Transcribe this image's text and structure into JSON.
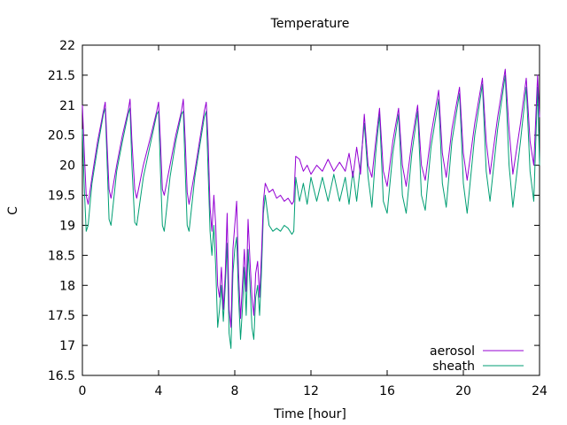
{
  "chart_data": {
    "type": "line",
    "title": "Temperature",
    "xlabel": "Time [hour]",
    "ylabel": "C",
    "xlim": [
      0,
      24
    ],
    "ylim": [
      16.5,
      22
    ],
    "x_ticks": [
      "0",
      "4",
      "8",
      "12",
      "16",
      "20",
      "24"
    ],
    "y_ticks": [
      "16.5",
      "17",
      "17.5",
      "18",
      "18.5",
      "19",
      "19.5",
      "20",
      "20.5",
      "21",
      "21.5",
      "22"
    ],
    "legend_position": "bottom-right",
    "grid": false,
    "series": [
      {
        "name": "aerosol",
        "color": "#9400d3",
        "points": [
          [
            0.0,
            21.0
          ],
          [
            0.1,
            20.2
          ],
          [
            0.2,
            19.5
          ],
          [
            0.3,
            19.35
          ],
          [
            0.5,
            19.8
          ],
          [
            0.8,
            20.4
          ],
          [
            1.1,
            20.9
          ],
          [
            1.2,
            21.05
          ],
          [
            1.3,
            20.3
          ],
          [
            1.4,
            19.6
          ],
          [
            1.5,
            19.45
          ],
          [
            1.8,
            20.0
          ],
          [
            2.1,
            20.5
          ],
          [
            2.4,
            20.9
          ],
          [
            2.5,
            21.1
          ],
          [
            2.6,
            20.4
          ],
          [
            2.75,
            19.6
          ],
          [
            2.85,
            19.45
          ],
          [
            3.2,
            20.0
          ],
          [
            3.6,
            20.5
          ],
          [
            3.9,
            20.9
          ],
          [
            4.0,
            21.05
          ],
          [
            4.1,
            20.4
          ],
          [
            4.2,
            19.6
          ],
          [
            4.3,
            19.5
          ],
          [
            4.6,
            20.0
          ],
          [
            4.9,
            20.5
          ],
          [
            5.2,
            20.9
          ],
          [
            5.3,
            21.1
          ],
          [
            5.4,
            20.4
          ],
          [
            5.5,
            19.55
          ],
          [
            5.6,
            19.35
          ],
          [
            5.9,
            19.9
          ],
          [
            6.2,
            20.5
          ],
          [
            6.4,
            20.9
          ],
          [
            6.5,
            21.05
          ],
          [
            6.6,
            20.4
          ],
          [
            6.7,
            19.3
          ],
          [
            6.8,
            18.9
          ],
          [
            6.9,
            19.5
          ],
          [
            7.0,
            19.0
          ],
          [
            7.1,
            18.0
          ],
          [
            7.2,
            17.8
          ],
          [
            7.3,
            18.3
          ],
          [
            7.4,
            17.6
          ],
          [
            7.5,
            18.2
          ],
          [
            7.6,
            19.2
          ],
          [
            7.7,
            17.6
          ],
          [
            7.8,
            17.3
          ],
          [
            7.9,
            18.6
          ],
          [
            8.0,
            19.0
          ],
          [
            8.1,
            19.4
          ],
          [
            8.2,
            18.2
          ],
          [
            8.3,
            17.45
          ],
          [
            8.4,
            18.0
          ],
          [
            8.5,
            18.6
          ],
          [
            8.6,
            17.9
          ],
          [
            8.7,
            19.1
          ],
          [
            8.8,
            18.4
          ],
          [
            8.9,
            17.8
          ],
          [
            9.0,
            17.5
          ],
          [
            9.1,
            18.2
          ],
          [
            9.2,
            18.4
          ],
          [
            9.3,
            17.8
          ],
          [
            9.4,
            18.5
          ],
          [
            9.5,
            19.4
          ],
          [
            9.6,
            19.7
          ],
          [
            9.8,
            19.55
          ],
          [
            10.0,
            19.6
          ],
          [
            10.2,
            19.45
          ],
          [
            10.4,
            19.5
          ],
          [
            10.6,
            19.4
          ],
          [
            10.8,
            19.45
          ],
          [
            11.0,
            19.35
          ],
          [
            11.1,
            19.4
          ],
          [
            11.2,
            20.15
          ],
          [
            11.4,
            20.1
          ],
          [
            11.6,
            19.9
          ],
          [
            11.8,
            20.0
          ],
          [
            12.0,
            19.85
          ],
          [
            12.3,
            20.0
          ],
          [
            12.6,
            19.9
          ],
          [
            12.9,
            20.1
          ],
          [
            13.2,
            19.9
          ],
          [
            13.5,
            20.05
          ],
          [
            13.8,
            19.9
          ],
          [
            14.0,
            20.2
          ],
          [
            14.2,
            19.8
          ],
          [
            14.4,
            20.3
          ],
          [
            14.6,
            19.85
          ],
          [
            14.8,
            20.85
          ],
          [
            15.0,
            20.0
          ],
          [
            15.2,
            19.8
          ],
          [
            15.4,
            20.4
          ],
          [
            15.6,
            20.95
          ],
          [
            15.8,
            19.9
          ],
          [
            16.0,
            19.65
          ],
          [
            16.3,
            20.4
          ],
          [
            16.6,
            20.95
          ],
          [
            16.8,
            20.0
          ],
          [
            17.0,
            19.65
          ],
          [
            17.3,
            20.4
          ],
          [
            17.6,
            21.0
          ],
          [
            17.8,
            20.0
          ],
          [
            18.0,
            19.75
          ],
          [
            18.3,
            20.5
          ],
          [
            18.7,
            21.25
          ],
          [
            18.9,
            20.2
          ],
          [
            19.1,
            19.8
          ],
          [
            19.4,
            20.6
          ],
          [
            19.8,
            21.3
          ],
          [
            20.0,
            20.2
          ],
          [
            20.2,
            19.75
          ],
          [
            20.6,
            20.7
          ],
          [
            21.0,
            21.45
          ],
          [
            21.2,
            20.4
          ],
          [
            21.4,
            19.85
          ],
          [
            21.8,
            20.8
          ],
          [
            22.2,
            21.6
          ],
          [
            22.4,
            20.6
          ],
          [
            22.6,
            19.85
          ],
          [
            23.0,
            20.7
          ],
          [
            23.3,
            21.45
          ],
          [
            23.5,
            20.4
          ],
          [
            23.7,
            20.0
          ],
          [
            23.9,
            21.5
          ],
          [
            24.0,
            20.8
          ]
        ]
      },
      {
        "name": "sheath",
        "color": "#009e73",
        "points": [
          [
            0.0,
            20.6
          ],
          [
            0.1,
            19.6
          ],
          [
            0.2,
            18.9
          ],
          [
            0.3,
            19.0
          ],
          [
            0.5,
            19.7
          ],
          [
            0.8,
            20.3
          ],
          [
            1.1,
            20.85
          ],
          [
            1.2,
            20.95
          ],
          [
            1.3,
            20.0
          ],
          [
            1.4,
            19.1
          ],
          [
            1.5,
            19.0
          ],
          [
            1.8,
            19.9
          ],
          [
            2.1,
            20.4
          ],
          [
            2.4,
            20.85
          ],
          [
            2.5,
            20.95
          ],
          [
            2.6,
            20.0
          ],
          [
            2.75,
            19.05
          ],
          [
            2.85,
            19.0
          ],
          [
            3.2,
            19.8
          ],
          [
            3.6,
            20.4
          ],
          [
            3.9,
            20.85
          ],
          [
            4.0,
            20.9
          ],
          [
            4.1,
            19.9
          ],
          [
            4.2,
            19.0
          ],
          [
            4.3,
            18.9
          ],
          [
            4.6,
            19.8
          ],
          [
            4.9,
            20.4
          ],
          [
            5.2,
            20.85
          ],
          [
            5.3,
            20.9
          ],
          [
            5.4,
            19.9
          ],
          [
            5.5,
            19.0
          ],
          [
            5.6,
            18.9
          ],
          [
            5.9,
            19.8
          ],
          [
            6.2,
            20.4
          ],
          [
            6.4,
            20.8
          ],
          [
            6.5,
            20.9
          ],
          [
            6.6,
            19.9
          ],
          [
            6.7,
            18.9
          ],
          [
            6.8,
            18.5
          ],
          [
            6.9,
            19.0
          ],
          [
            7.0,
            18.3
          ],
          [
            7.1,
            17.3
          ],
          [
            7.2,
            17.6
          ],
          [
            7.3,
            18.0
          ],
          [
            7.4,
            17.4
          ],
          [
            7.5,
            18.0
          ],
          [
            7.6,
            18.7
          ],
          [
            7.7,
            17.2
          ],
          [
            7.8,
            16.95
          ],
          [
            7.9,
            18.2
          ],
          [
            8.0,
            18.6
          ],
          [
            8.1,
            18.8
          ],
          [
            8.2,
            17.8
          ],
          [
            8.3,
            17.1
          ],
          [
            8.4,
            17.6
          ],
          [
            8.5,
            18.3
          ],
          [
            8.6,
            17.5
          ],
          [
            8.7,
            18.6
          ],
          [
            8.8,
            18.0
          ],
          [
            8.9,
            17.3
          ],
          [
            9.0,
            17.1
          ],
          [
            9.1,
            17.8
          ],
          [
            9.2,
            18.0
          ],
          [
            9.3,
            17.5
          ],
          [
            9.4,
            18.2
          ],
          [
            9.5,
            19.2
          ],
          [
            9.6,
            19.5
          ],
          [
            9.8,
            19.0
          ],
          [
            10.0,
            18.9
          ],
          [
            10.2,
            18.95
          ],
          [
            10.4,
            18.9
          ],
          [
            10.6,
            19.0
          ],
          [
            10.8,
            18.95
          ],
          [
            11.0,
            18.85
          ],
          [
            11.1,
            18.9
          ],
          [
            11.2,
            19.8
          ],
          [
            11.4,
            19.4
          ],
          [
            11.6,
            19.7
          ],
          [
            11.8,
            19.35
          ],
          [
            12.0,
            19.8
          ],
          [
            12.3,
            19.4
          ],
          [
            12.6,
            19.8
          ],
          [
            12.9,
            19.4
          ],
          [
            13.2,
            19.85
          ],
          [
            13.5,
            19.4
          ],
          [
            13.8,
            19.8
          ],
          [
            14.0,
            19.35
          ],
          [
            14.2,
            19.9
          ],
          [
            14.4,
            19.4
          ],
          [
            14.6,
            20.0
          ],
          [
            14.8,
            20.7
          ],
          [
            15.0,
            19.8
          ],
          [
            15.2,
            19.3
          ],
          [
            15.4,
            20.2
          ],
          [
            15.6,
            20.85
          ],
          [
            15.8,
            19.4
          ],
          [
            16.0,
            19.2
          ],
          [
            16.3,
            20.2
          ],
          [
            16.6,
            20.85
          ],
          [
            16.8,
            19.5
          ],
          [
            17.0,
            19.2
          ],
          [
            17.3,
            20.2
          ],
          [
            17.6,
            20.9
          ],
          [
            17.8,
            19.5
          ],
          [
            18.0,
            19.25
          ],
          [
            18.3,
            20.3
          ],
          [
            18.7,
            21.1
          ],
          [
            18.9,
            19.7
          ],
          [
            19.1,
            19.3
          ],
          [
            19.4,
            20.4
          ],
          [
            19.8,
            21.2
          ],
          [
            20.0,
            19.7
          ],
          [
            20.2,
            19.2
          ],
          [
            20.6,
            20.5
          ],
          [
            21.0,
            21.35
          ],
          [
            21.2,
            19.9
          ],
          [
            21.4,
            19.4
          ],
          [
            21.8,
            20.6
          ],
          [
            22.2,
            21.5
          ],
          [
            22.4,
            20.0
          ],
          [
            22.6,
            19.3
          ],
          [
            23.0,
            20.4
          ],
          [
            23.3,
            21.3
          ],
          [
            23.5,
            19.9
          ],
          [
            23.7,
            19.4
          ],
          [
            23.9,
            21.3
          ],
          [
            24.0,
            20.0
          ]
        ]
      }
    ]
  }
}
